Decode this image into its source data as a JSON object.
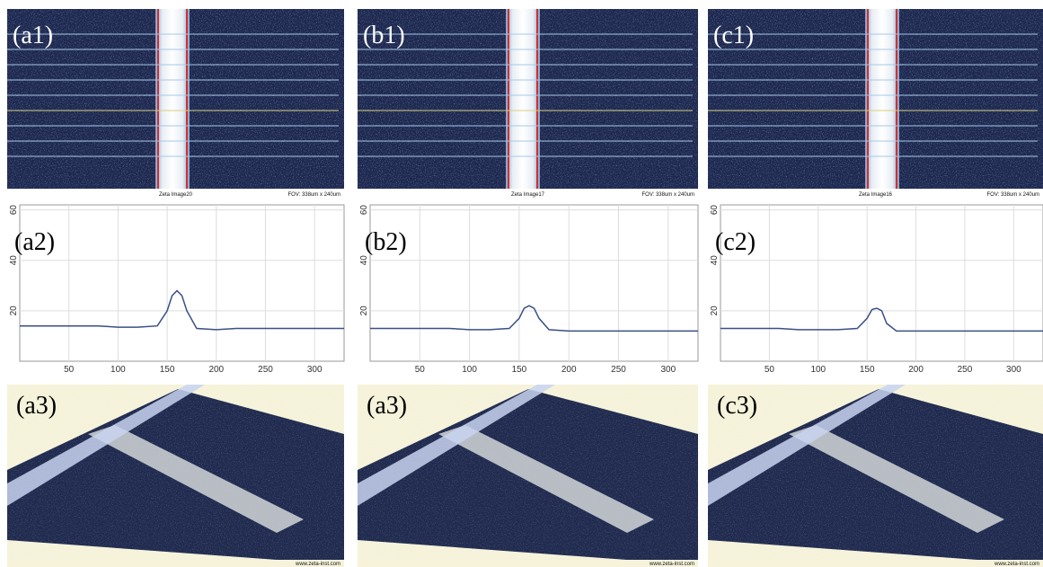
{
  "panels": [
    {
      "label": "(a1)",
      "caption": "Zeta Image20",
      "fov": "FOV: 338um x 240um"
    },
    {
      "label": "(b1)",
      "caption": "Zeta Image17",
      "fov": "FOV: 338um x 240um"
    },
    {
      "label": "(c1)",
      "caption": "Zeta Image16",
      "fov": "FOV: 338um x 240um"
    }
  ],
  "chart_data": [
    {
      "type": "line",
      "label": "(a2)",
      "x": [
        0,
        20,
        40,
        60,
        80,
        100,
        120,
        140,
        150,
        155,
        160,
        165,
        170,
        180,
        200,
        220,
        240,
        260,
        280,
        300,
        320,
        330
      ],
      "series": [
        {
          "color": "#3b4f86",
          "values": [
            14,
            14,
            14,
            14,
            14,
            13.5,
            13.5,
            14,
            20,
            26,
            28,
            26,
            20,
            13,
            12.5,
            13,
            13,
            13,
            13,
            13,
            13,
            13
          ]
        }
      ],
      "xlim": [
        0,
        330
      ],
      "ylim": [
        0,
        62
      ],
      "xticks": [
        50,
        100,
        150,
        200,
        250,
        300
      ],
      "yticks": [
        20,
        40,
        60
      ],
      "grid": true
    },
    {
      "type": "line",
      "label": "(b2)",
      "x": [
        0,
        20,
        40,
        60,
        80,
        100,
        120,
        140,
        150,
        155,
        160,
        165,
        170,
        180,
        200,
        220,
        240,
        260,
        280,
        300,
        320,
        330
      ],
      "series": [
        {
          "color": "#3b4f86",
          "values": [
            13,
            13,
            13,
            13,
            13,
            12.5,
            12.5,
            13,
            17,
            21,
            22,
            21,
            17,
            12.5,
            12,
            12,
            12,
            12,
            12,
            12,
            12,
            12
          ]
        }
      ],
      "xlim": [
        0,
        330
      ],
      "ylim": [
        0,
        62
      ],
      "xticks": [
        50,
        100,
        150,
        200,
        250,
        300
      ],
      "yticks": [
        20,
        40,
        60
      ],
      "grid": true
    },
    {
      "type": "line",
      "label": "(c2)",
      "x": [
        0,
        20,
        40,
        60,
        80,
        100,
        120,
        140,
        150,
        155,
        160,
        165,
        170,
        180,
        200,
        220,
        240,
        260,
        280,
        300,
        320,
        330
      ],
      "series": [
        {
          "color": "#3b4f86",
          "values": [
            13,
            13,
            13,
            13,
            12.5,
            12.5,
            12.5,
            13,
            17,
            20.5,
            21,
            20,
            15,
            12,
            12,
            12,
            12,
            12,
            12,
            12,
            12,
            12
          ]
        }
      ],
      "xlim": [
        0,
        330
      ],
      "ylim": [
        0,
        62
      ],
      "xticks": [
        50,
        100,
        150,
        200,
        250,
        300
      ],
      "yticks": [
        20,
        40,
        60
      ],
      "grid": true
    }
  ],
  "renders": [
    {
      "label": "(a3)",
      "watermark": "www.zeta-inst.com"
    },
    {
      "label": "(a3)",
      "watermark": "www.zeta-inst.com"
    },
    {
      "label": "(c3)",
      "watermark": "www.zeta-inst.com"
    }
  ]
}
